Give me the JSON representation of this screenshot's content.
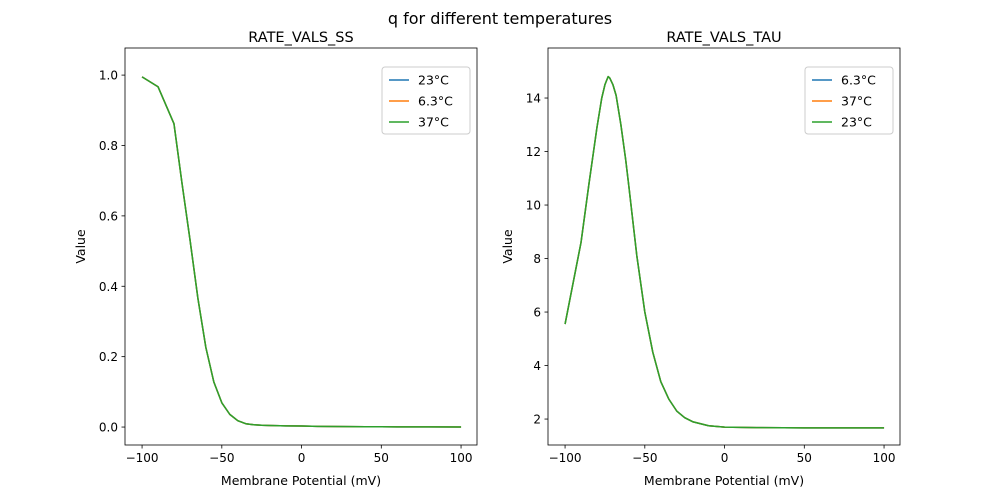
{
  "figure_title": "q for different temperatures",
  "chart_data": [
    {
      "type": "line",
      "title": "RATE_VALS_SS",
      "xlabel": "Membrane Potential (mV)",
      "ylabel": "Value",
      "xlim": [
        -110.7,
        110.0
      ],
      "ylim": [
        -0.051,
        1.077
      ],
      "xticks": [
        -100,
        -50,
        0,
        50,
        100
      ],
      "xtick_labels": [
        "−100",
        "−50",
        "0",
        "50",
        "100"
      ],
      "yticks": [
        0.0,
        0.2,
        0.4,
        0.6,
        0.8,
        1.0
      ],
      "ytick_labels": [
        "0.0",
        "0.2",
        "0.4",
        "0.6",
        "0.8",
        "1.0"
      ],
      "legend_position": "top-right",
      "grid": false,
      "x": [
        -100,
        -90,
        -80,
        -75,
        -70,
        -65,
        -60,
        -55,
        -50,
        -45,
        -40,
        -35,
        -30,
        -25,
        -20,
        -10,
        0,
        10,
        20,
        40,
        60,
        80,
        100
      ],
      "series": [
        {
          "name": "23°C",
          "color": "#1f77b4",
          "values": [
            0.995,
            0.967,
            0.862,
            0.694,
            0.534,
            0.366,
            0.226,
            0.128,
            0.069,
            0.036,
            0.018,
            0.0095,
            0.0065,
            0.005,
            0.0045,
            0.0035,
            0.003,
            0.002,
            0.0015,
            0.001,
            0.0006,
            0.0004,
            0.0003
          ]
        },
        {
          "name": "6.3°C",
          "color": "#ff7f0e",
          "values": [
            0.995,
            0.967,
            0.862,
            0.694,
            0.534,
            0.366,
            0.226,
            0.128,
            0.069,
            0.036,
            0.018,
            0.0095,
            0.0065,
            0.005,
            0.0045,
            0.0035,
            0.003,
            0.002,
            0.0015,
            0.001,
            0.0006,
            0.0004,
            0.0003
          ]
        },
        {
          "name": "37°C",
          "color": "#2ca02c",
          "values": [
            0.995,
            0.967,
            0.862,
            0.694,
            0.534,
            0.366,
            0.226,
            0.128,
            0.069,
            0.036,
            0.018,
            0.0095,
            0.0065,
            0.005,
            0.0045,
            0.0035,
            0.003,
            0.002,
            0.0015,
            0.001,
            0.0006,
            0.0004,
            0.0003
          ]
        }
      ]
    },
    {
      "type": "line",
      "title": "RATE_VALS_TAU",
      "xlabel": "Membrane Potential (mV)",
      "ylabel": "Value",
      "xlim": [
        -110.7,
        110.0
      ],
      "ylim": [
        1.03,
        15.87
      ],
      "xticks": [
        -100,
        -50,
        0,
        50,
        100
      ],
      "xtick_labels": [
        "−100",
        "−50",
        "0",
        "50",
        "100"
      ],
      "yticks": [
        2,
        4,
        6,
        8,
        10,
        12,
        14
      ],
      "ytick_labels": [
        "2",
        "4",
        "6",
        "8",
        "10",
        "12",
        "14"
      ],
      "legend_position": "top-right",
      "grid": false,
      "x": [
        -100,
        -90,
        -85,
        -80,
        -77,
        -75,
        -73,
        -72,
        -70,
        -68,
        -65,
        -62,
        -60,
        -55,
        -50,
        -45,
        -40,
        -35,
        -30,
        -25,
        -20,
        -10,
        0,
        20,
        50,
        100
      ],
      "series": [
        {
          "name": "6.3°C",
          "color": "#1f77b4",
          "values": [
            5.55,
            8.6,
            10.8,
            12.9,
            14.0,
            14.5,
            14.8,
            14.75,
            14.5,
            14.1,
            13.0,
            11.7,
            10.7,
            8.1,
            6.0,
            4.5,
            3.4,
            2.75,
            2.3,
            2.05,
            1.9,
            1.75,
            1.7,
            1.68,
            1.67,
            1.67
          ]
        },
        {
          "name": "37°C",
          "color": "#ff7f0e",
          "values": [
            5.55,
            8.6,
            10.8,
            12.9,
            14.0,
            14.5,
            14.8,
            14.75,
            14.5,
            14.1,
            13.0,
            11.7,
            10.7,
            8.1,
            6.0,
            4.5,
            3.4,
            2.75,
            2.3,
            2.05,
            1.9,
            1.75,
            1.7,
            1.68,
            1.67,
            1.67
          ]
        },
        {
          "name": "23°C",
          "color": "#2ca02c",
          "values": [
            5.55,
            8.6,
            10.8,
            12.9,
            14.0,
            14.5,
            14.8,
            14.75,
            14.5,
            14.1,
            13.0,
            11.7,
            10.7,
            8.1,
            6.0,
            4.5,
            3.4,
            2.75,
            2.3,
            2.05,
            1.9,
            1.75,
            1.7,
            1.68,
            1.67,
            1.67
          ]
        }
      ]
    }
  ]
}
